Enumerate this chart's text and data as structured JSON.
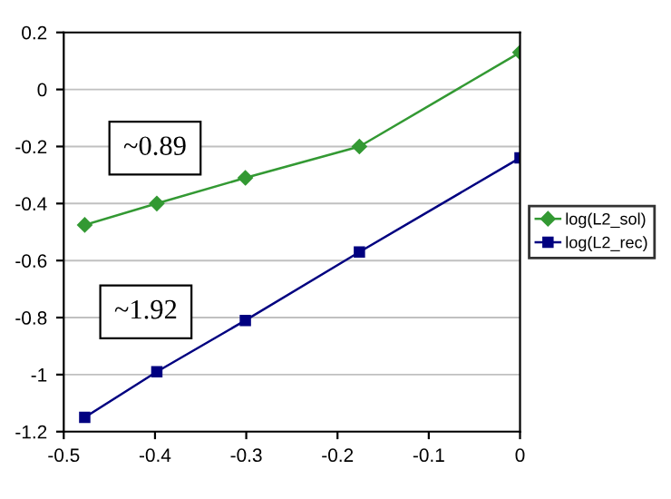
{
  "chart_data": {
    "type": "line",
    "x": [
      -0.477,
      -0.398,
      -0.301,
      -0.176,
      0
    ],
    "series": [
      {
        "name": "log(L2_sol)",
        "color": "#339933",
        "values": [
          -0.475,
          -0.4,
          -0.31,
          -0.2,
          0.13
        ],
        "marker": "diamond"
      },
      {
        "name": "log(L2_rec)",
        "color": "#000080",
        "values": [
          -1.15,
          -0.99,
          -0.81,
          -0.57,
          -0.24
        ],
        "marker": "square"
      }
    ],
    "xlim": [
      -0.5,
      0
    ],
    "xticks": [
      -0.5,
      -0.4,
      -0.3,
      -0.2,
      -0.1,
      0
    ],
    "ylim": [
      -1.2,
      0.2
    ],
    "yticks": [
      -1.2,
      -1,
      -0.8,
      -0.6,
      -0.4,
      -0.2,
      0,
      0.2
    ],
    "annotations": [
      "~0.89",
      "~1.92"
    ],
    "grid": "y",
    "legend": "right",
    "line_style": "solid"
  }
}
